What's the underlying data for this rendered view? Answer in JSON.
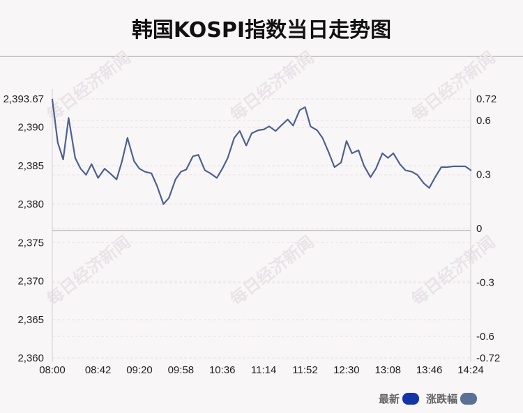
{
  "title": "韩国KOSPI指数当日走势图",
  "watermark": "每日经济新闻",
  "colors": {
    "line": "#4c6191",
    "latest_swatch": "#1236a8",
    "change_swatch": "#5a7096",
    "grid": "#e6e1e5",
    "baseline": "#bdbdbd",
    "watermark": "#e9e4e7",
    "axis_text": "#222222"
  },
  "legend": [
    {
      "name": "最新",
      "color": "#1236a8"
    },
    {
      "name": "涨跌幅",
      "color": "#5a7096"
    }
  ],
  "chart_data": {
    "type": "line",
    "title": "韩国KOSPI指数当日走势图",
    "xlabel": "",
    "ylabel": "",
    "x_ticks": [
      "08:00",
      "08:42",
      "09:20",
      "09:58",
      "10:36",
      "11:14",
      "11:52",
      "12:30",
      "13:08",
      "13:46",
      "14:24"
    ],
    "y_ticks_left": [
      "2,393.67",
      "2,390",
      "2,385",
      "2,380",
      "2,375",
      "2,370",
      "2,365",
      "2,360"
    ],
    "y_ticks_left_values": [
      2393.67,
      2390,
      2385,
      2380,
      2375,
      2370,
      2365,
      2360
    ],
    "y_ticks_right": [
      "0.72",
      "0.6",
      "0.3",
      "0",
      "-0.3",
      "-0.6",
      "-0.72"
    ],
    "y_ticks_right_values": [
      0.72,
      0.6,
      0.3,
      0,
      -0.3,
      -0.6,
      -0.72
    ],
    "ylim_left": [
      2360,
      2393.67
    ],
    "ylim_right": [
      -0.72,
      0.72
    ],
    "baseline_value": 2376.55,
    "grid": true,
    "legend_position": "bottom-right",
    "series": [
      {
        "name": "最新",
        "x": [
          "08:00",
          "08:05",
          "08:10",
          "08:15",
          "08:21",
          "08:26",
          "08:31",
          "08:36",
          "08:42",
          "08:48",
          "08:53",
          "08:59",
          "09:04",
          "09:09",
          "09:15",
          "09:20",
          "09:25",
          "09:31",
          "09:36",
          "09:42",
          "09:47",
          "09:53",
          "09:58",
          "10:03",
          "10:09",
          "10:14",
          "10:20",
          "10:25",
          "10:31",
          "10:36",
          "10:41",
          "10:47",
          "10:52",
          "10:58",
          "11:03",
          "11:09",
          "11:14",
          "11:19",
          "11:25",
          "11:30",
          "11:36",
          "11:41",
          "11:47",
          "11:52",
          "11:57",
          "12:03",
          "12:08",
          "12:14",
          "12:19",
          "12:25",
          "12:30",
          "12:35",
          "12:41",
          "12:46",
          "12:52",
          "12:57",
          "13:03",
          "13:08",
          "13:13",
          "13:19",
          "13:24",
          "13:30",
          "13:35",
          "13:41",
          "13:46",
          "13:51",
          "13:57",
          "14:02",
          "14:08",
          "14:13",
          "14:19",
          "14:24"
        ],
        "values": [
          2393.6,
          2388.0,
          2385.8,
          2391.2,
          2386.0,
          2384.6,
          2383.8,
          2385.2,
          2383.4,
          2384.6,
          2384.0,
          2383.2,
          2385.6,
          2388.6,
          2385.6,
          2384.6,
          2384.2,
          2384.0,
          2382.4,
          2380.0,
          2380.8,
          2383.2,
          2384.2,
          2384.5,
          2386.2,
          2386.4,
          2384.4,
          2384.0,
          2383.4,
          2384.6,
          2386.0,
          2388.6,
          2389.5,
          2387.6,
          2389.2,
          2389.6,
          2389.7,
          2390.1,
          2389.5,
          2390.2,
          2391.0,
          2390.2,
          2392.2,
          2392.6,
          2390.1,
          2389.6,
          2388.6,
          2386.6,
          2384.8,
          2385.4,
          2388.2,
          2386.6,
          2387.0,
          2385.0,
          2383.5,
          2384.6,
          2386.6,
          2386.0,
          2386.6,
          2385.2,
          2384.4,
          2384.2,
          2383.8,
          2382.7,
          2382.1,
          2383.4,
          2384.8,
          2384.8,
          2384.9,
          2384.9,
          2384.9,
          2384.4
        ]
      }
    ]
  }
}
